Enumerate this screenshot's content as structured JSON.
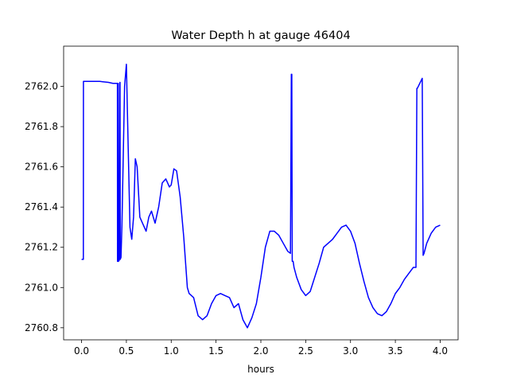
{
  "chart_data": {
    "type": "line",
    "title": "Water Depth h at gauge 46404",
    "xlabel": "hours",
    "ylabel": "",
    "xlim": [
      -0.2,
      4.2
    ],
    "ylim": [
      2760.74,
      2762.2
    ],
    "xticks": [
      0.0,
      0.5,
      1.0,
      1.5,
      2.0,
      2.5,
      3.0,
      3.5,
      4.0
    ],
    "xtick_labels": [
      "0.0",
      "0.5",
      "1.0",
      "1.5",
      "2.0",
      "2.5",
      "3.0",
      "3.5",
      "4.0"
    ],
    "yticks": [
      2760.8,
      2761.0,
      2761.2,
      2761.4,
      2761.6,
      2761.8,
      2762.0
    ],
    "ytick_labels": [
      "2760.8",
      "2761.0",
      "2761.2",
      "2761.4",
      "2761.6",
      "2761.8",
      "2762.0"
    ],
    "grid": false,
    "colors": {
      "line": "#0000ff",
      "axes": "#000000",
      "background": "#ffffff"
    },
    "series": [
      {
        "x": [
          0.0,
          0.02,
          0.021,
          0.1,
          0.2,
          0.3,
          0.35,
          0.38,
          0.4,
          0.401,
          0.403,
          0.405,
          0.41,
          0.411,
          0.42,
          0.428,
          0.429,
          0.432,
          0.44,
          0.45,
          0.48,
          0.5,
          0.52,
          0.54,
          0.56,
          0.58,
          0.6,
          0.62,
          0.65,
          0.68,
          0.72,
          0.75,
          0.78,
          0.82,
          0.86,
          0.9,
          0.94,
          0.98,
          1.0,
          1.03,
          1.06,
          1.1,
          1.14,
          1.18,
          1.2,
          1.25,
          1.3,
          1.35,
          1.4,
          1.45,
          1.5,
          1.55,
          1.6,
          1.65,
          1.7,
          1.75,
          1.8,
          1.85,
          1.9,
          1.95,
          2.0,
          2.05,
          2.1,
          2.15,
          2.2,
          2.25,
          2.3,
          2.33,
          2.34,
          2.345,
          2.35,
          2.36,
          2.37,
          2.4,
          2.45,
          2.5,
          2.55,
          2.6,
          2.65,
          2.7,
          2.75,
          2.8,
          2.85,
          2.9,
          2.95,
          3.0,
          3.05,
          3.1,
          3.15,
          3.2,
          3.25,
          3.3,
          3.35,
          3.4,
          3.45,
          3.5,
          3.55,
          3.6,
          3.65,
          3.7,
          3.73,
          3.74,
          3.745,
          3.8,
          3.81,
          3.82,
          3.85,
          3.9,
          3.95,
          4.0
        ],
        "y": [
          2761.14,
          2761.14,
          2762.025,
          2762.025,
          2762.025,
          2762.02,
          2762.015,
          2762.015,
          2762.015,
          2761.13,
          2761.13,
          2761.13,
          2762.015,
          2761.13,
          2761.135,
          2762.02,
          2762.02,
          2761.14,
          2761.15,
          2761.3,
          2762.0,
          2762.11,
          2761.7,
          2761.3,
          2761.24,
          2761.35,
          2761.64,
          2761.6,
          2761.35,
          2761.32,
          2761.28,
          2761.35,
          2761.38,
          2761.32,
          2761.4,
          2761.52,
          2761.54,
          2761.5,
          2761.51,
          2761.59,
          2761.58,
          2761.45,
          2761.25,
          2761.0,
          2760.97,
          2760.95,
          2760.86,
          2760.84,
          2760.86,
          2760.92,
          2760.96,
          2760.97,
          2760.96,
          2760.95,
          2760.9,
          2760.92,
          2760.84,
          2760.8,
          2760.85,
          2760.92,
          2761.05,
          2761.2,
          2761.28,
          2761.28,
          2761.26,
          2761.22,
          2761.18,
          2761.17,
          2762.06,
          2762.06,
          2761.13,
          2761.13,
          2761.1,
          2761.05,
          2760.99,
          2760.96,
          2760.98,
          2761.05,
          2761.12,
          2761.2,
          2761.22,
          2761.24,
          2761.27,
          2761.3,
          2761.31,
          2761.28,
          2761.22,
          2761.12,
          2761.03,
          2760.95,
          2760.9,
          2760.87,
          2760.86,
          2760.88,
          2760.92,
          2760.97,
          2761.0,
          2761.04,
          2761.07,
          2761.1,
          2761.1,
          2761.99,
          2761.99,
          2762.04,
          2761.16,
          2761.17,
          2761.22,
          2761.27,
          2761.3,
          2761.31
        ]
      }
    ]
  }
}
